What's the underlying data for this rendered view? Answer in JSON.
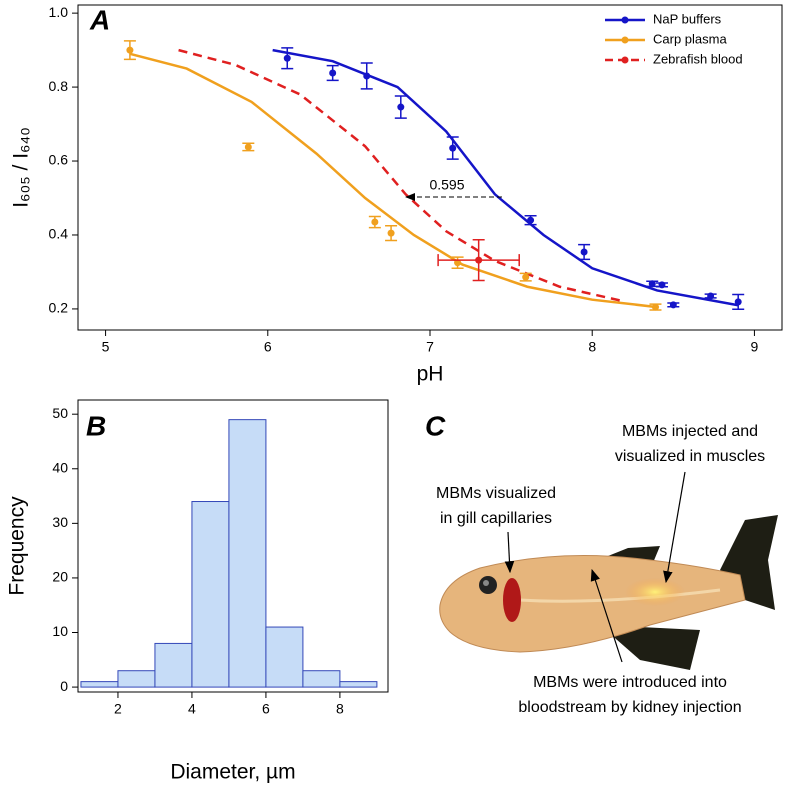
{
  "chart_data": [
    {
      "type": "scatter",
      "panel": "A",
      "x_label": "pH",
      "y_label": "I₆₀₅ / I₆₄₀",
      "xlim": [
        4.83,
        9.17
      ],
      "ylim": [
        0.143,
        1.022
      ],
      "xticks": [
        5,
        6,
        7,
        8,
        9
      ],
      "yticks": [
        {
          "value": 1.0,
          "label": "1.0"
        },
        0.8,
        0.6,
        0.4,
        0.2
      ],
      "legend": "upper right",
      "series": [
        {
          "name": "NaP buffers",
          "color": "#1515c8",
          "line_style": "solid",
          "x": [
            6.12,
            6.4,
            6.61,
            6.82,
            7.14,
            7.62,
            7.95,
            8.37,
            8.43,
            8.5,
            8.73,
            8.9
          ],
          "values": [
            0.878,
            0.838,
            0.83,
            0.746,
            0.635,
            0.44,
            0.354,
            0.268,
            0.265,
            0.211,
            0.235,
            0.219
          ],
          "errors": [
            0.028,
            0.02,
            0.035,
            0.03,
            0.03,
            0.012,
            0.02,
            0.007,
            0.005,
            0.005,
            0.005,
            0.02
          ]
        },
        {
          "name": "Carp plasma",
          "color": "#f0a01e",
          "line_style": "solid",
          "x": [
            5.15,
            5.88,
            6.66,
            6.76,
            7.17,
            7.59,
            8.39
          ],
          "values": [
            0.9,
            0.638,
            0.435,
            0.405,
            0.325,
            0.286,
            0.205
          ],
          "errors": [
            0.025,
            0.01,
            0.015,
            0.02,
            0.015,
            0.01,
            0.008
          ]
        },
        {
          "name": "Zebrafish blood",
          "color": "#e02020",
          "line_style": "dashed",
          "x": [
            7.3
          ],
          "values": [
            0.332
          ],
          "errors": [
            0.055
          ],
          "x_errors": [
            0.25
          ]
        }
      ],
      "fits": [
        {
          "color": "#1515c8",
          "line_style": "solid",
          "x": [
            6.03,
            6.4,
            6.8,
            7.1,
            7.4,
            7.7,
            8.0,
            8.4,
            8.9
          ],
          "values": [
            0.9,
            0.87,
            0.8,
            0.68,
            0.51,
            0.4,
            0.31,
            0.25,
            0.21
          ]
        },
        {
          "color": "#f0a01e",
          "line_style": "solid",
          "x": [
            5.15,
            5.5,
            5.9,
            6.3,
            6.6,
            6.9,
            7.2,
            7.6,
            8.0,
            8.4
          ],
          "values": [
            0.89,
            0.85,
            0.76,
            0.62,
            0.5,
            0.4,
            0.32,
            0.26,
            0.225,
            0.205
          ]
        },
        {
          "color": "#e02020",
          "line_style": "dashed",
          "x": [
            5.45,
            5.8,
            6.2,
            6.6,
            6.85,
            7.1,
            7.4,
            7.8,
            8.2
          ],
          "values": [
            0.9,
            0.86,
            0.78,
            0.64,
            0.51,
            0.41,
            0.33,
            0.26,
            0.22
          ]
        }
      ],
      "annotations": [
        "0.595"
      ]
    },
    {
      "type": "histogram",
      "panel": "B",
      "x_label": "Diameter, µm",
      "y_label": "Frequency",
      "bins": [
        1,
        2,
        3,
        4,
        5,
        6,
        7,
        8,
        9
      ],
      "values": [
        1,
        3,
        8,
        34,
        49,
        11,
        3,
        1
      ],
      "color": "#c6dcf7",
      "edge_color": "#3347b8",
      "xlim": [
        0.92,
        9.3
      ],
      "ylim": [
        -0.9,
        52.6
      ],
      "xticks": [
        2,
        4,
        6,
        8
      ],
      "yticks": [
        0,
        10,
        20,
        30,
        40,
        50
      ]
    }
  ],
  "panel_c": {
    "label": "C",
    "annotations": [
      {
        "lines": [
          "MBMs injected and",
          "visualized in muscles"
        ]
      },
      {
        "lines": [
          "MBMs visualized",
          "in gill capillaries"
        ]
      },
      {
        "lines": [
          "MBMs were introduced into",
          "bloodstream by kidney injection"
        ]
      }
    ]
  }
}
